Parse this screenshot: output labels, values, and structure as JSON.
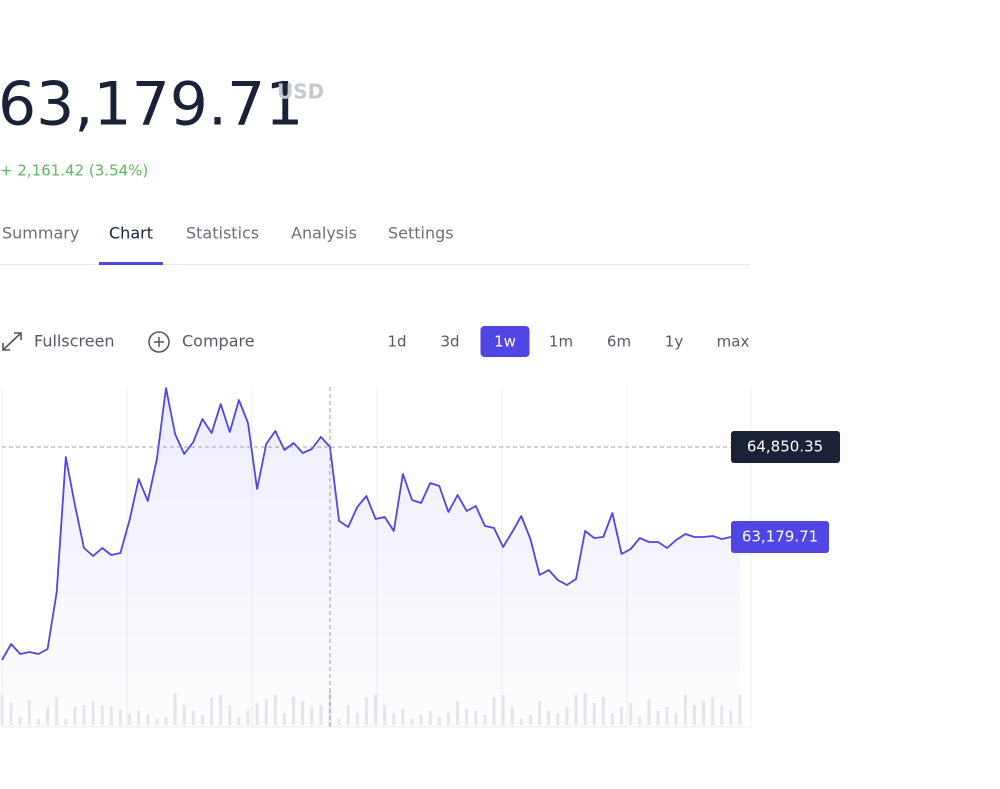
{
  "header": {
    "price": "63,179.71",
    "currency": "USD",
    "change": "+ 2,161.42 (3.54%)"
  },
  "tabs": [
    "Summary",
    "Chart",
    "Statistics",
    "Analysis",
    "Settings"
  ],
  "active_tab": 1,
  "toolbar": [
    "Fullscreen",
    "Compare"
  ],
  "ranges": [
    "1d",
    "3d",
    "1w",
    "1m",
    "6m",
    "1y",
    "max"
  ],
  "active_range": 2,
  "chart_data": {
    "type": "line",
    "color": "#4f46e5",
    "values": [
      60897,
      61194,
      61008,
      61045,
      61008,
      61101,
      62159,
      64665,
      63774,
      62976,
      62827,
      62976,
      62846,
      62883,
      63496,
      64257,
      63848,
      64628,
      65946,
      65092,
      64721,
      64943,
      65370,
      65111,
      65649,
      65129,
      65723,
      65296,
      64071,
      64906,
      65148,
      64795,
      64925,
      64739,
      64814,
      65036,
      64850.35,
      63477,
      63366,
      63737,
      63941,
      63514,
      63551,
      63291,
      64349,
      63867,
      63811,
      64182,
      64127,
      63644,
      63960,
      63663,
      63755,
      63384,
      63347,
      62994,
      63273,
      63570,
      63143,
      62475,
      62567,
      62382,
      62289,
      62400,
      63291,
      63161,
      63180,
      63626,
      62864,
      62957,
      63161,
      63087,
      63087,
      62976,
      63124,
      63236,
      63180,
      63180,
      63198,
      63143,
      63180,
      63179.71
    ],
    "volume": [
      30,
      22,
      8,
      25,
      6,
      18,
      28,
      6,
      18,
      20,
      24,
      20,
      18,
      15,
      12,
      14,
      10,
      6,
      8,
      32,
      20,
      14,
      10,
      28,
      30,
      20,
      8,
      14,
      22,
      26,
      30,
      12,
      28,
      24,
      18,
      20,
      34,
      6,
      20,
      12,
      28,
      30,
      20,
      12,
      16,
      6,
      10,
      14,
      8,
      12,
      24,
      16,
      14,
      10,
      28,
      30,
      18,
      6,
      10,
      24,
      14,
      12,
      18,
      30,
      32,
      22,
      28,
      12,
      18,
      22,
      8,
      26,
      14,
      18,
      12,
      30,
      20,
      24,
      28,
      20,
      14,
      30
    ],
    "hover": {
      "value": 64850.35,
      "label": "64,850.35"
    },
    "last": {
      "value": 63179.71,
      "label": "63,179.71"
    }
  }
}
